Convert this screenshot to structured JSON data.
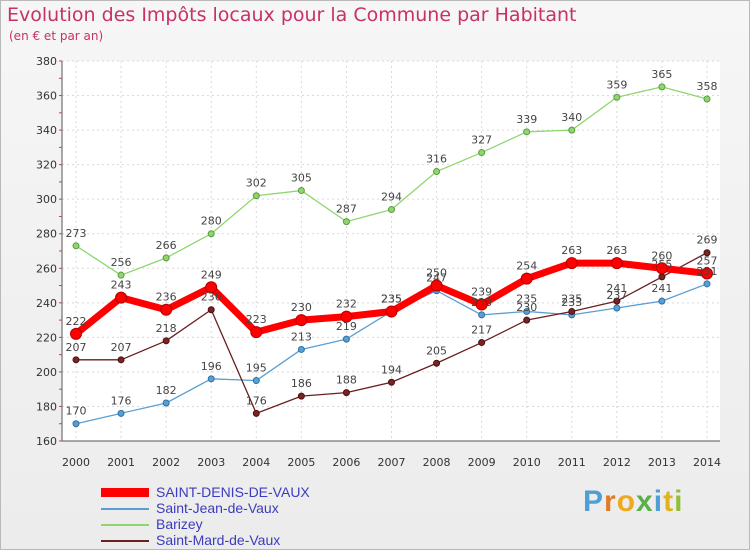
{
  "chart_data": {
    "type": "line",
    "title": "Evolution des Impôts locaux pour la Commune par Habitant",
    "subtitle": "(en € et par an)",
    "x": [
      "2000",
      "2001",
      "2002",
      "2003",
      "2004",
      "2005",
      "2006",
      "2007",
      "2008",
      "2009",
      "2010",
      "2011",
      "2012",
      "2013",
      "2014"
    ],
    "ylim": [
      160,
      380
    ],
    "yticks": [
      "160",
      "180",
      "200",
      "220",
      "240",
      "260",
      "280",
      "300",
      "320",
      "340",
      "360",
      "380"
    ],
    "grid": true,
    "legend_position": "bottom-left",
    "series": [
      {
        "name": "SAINT-DENIS-DE-VAUX",
        "color": "#ff0000",
        "values": [
          222,
          243,
          236,
          249,
          223,
          230,
          232,
          235,
          250,
          239,
          254,
          263,
          263,
          260,
          257
        ]
      },
      {
        "name": "Saint-Jean-de-Vaux",
        "color": "#5a9fd4",
        "values": [
          170,
          176,
          182,
          196,
          195,
          213,
          219,
          235,
          247,
          233,
          235,
          233,
          237,
          241,
          251
        ]
      },
      {
        "name": "Barizey",
        "color": "#8fd66e",
        "values": [
          273,
          256,
          266,
          280,
          302,
          305,
          287,
          294,
          316,
          327,
          339,
          340,
          359,
          365,
          358
        ]
      },
      {
        "name": "Saint-Mard-de-Vaux",
        "color": "#6b1f1f",
        "values": [
          207,
          207,
          218,
          236,
          176,
          186,
          188,
          194,
          205,
          217,
          230,
          235,
          241,
          255,
          269
        ]
      }
    ]
  },
  "brand": {
    "text": "Proxiti",
    "letter_colors": [
      "#4f9fd6",
      "#e07b2a",
      "#f0a81c",
      "#5ab04a",
      "#4f9fd6",
      "#e0b21c",
      "#8fbf3a"
    ]
  }
}
